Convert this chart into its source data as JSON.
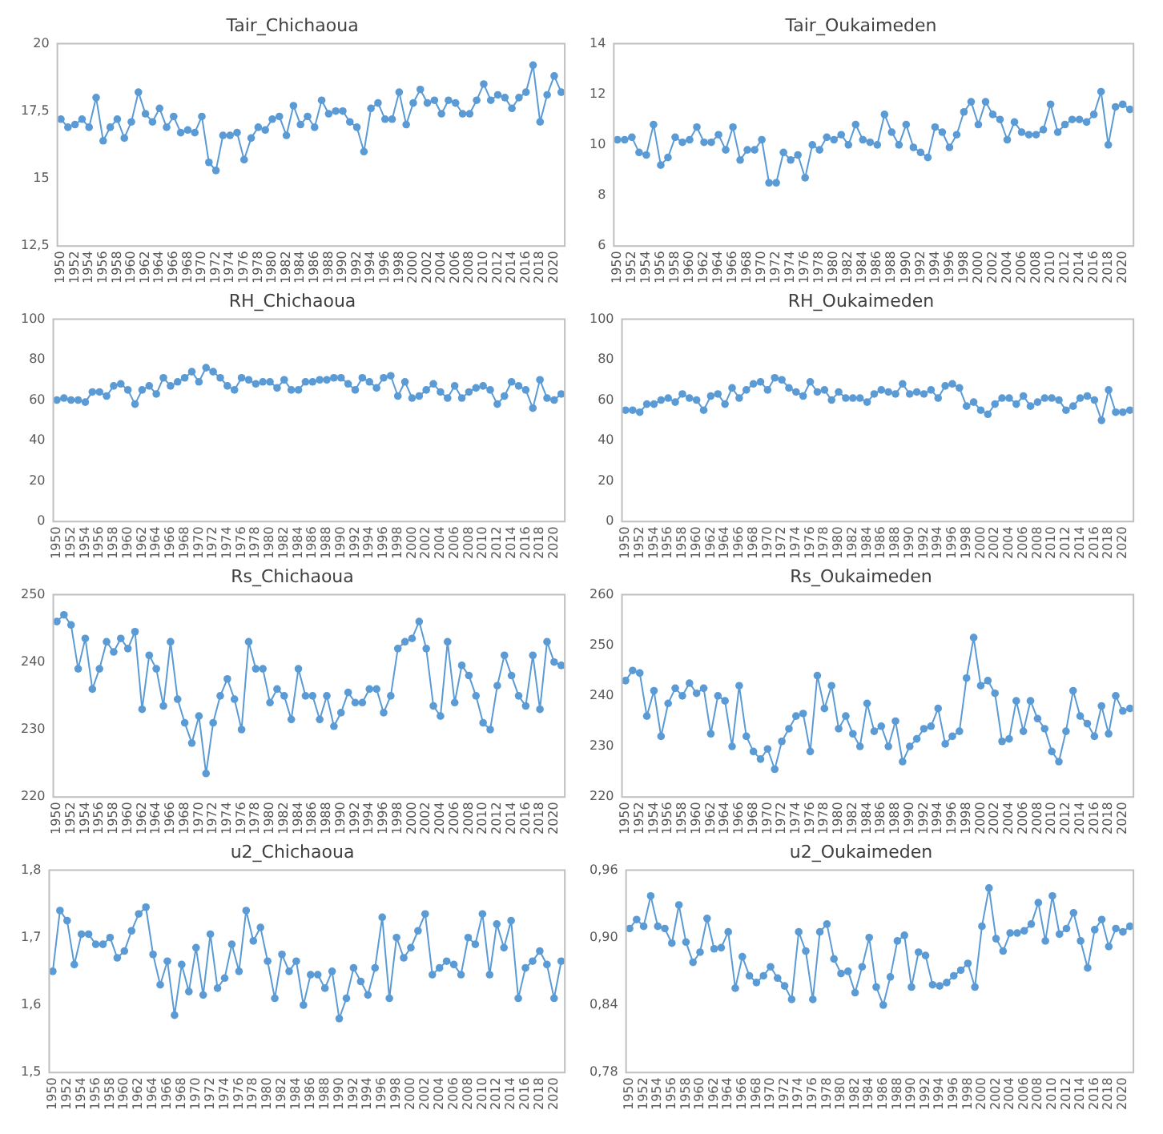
{
  "chart_data": [
    {
      "type": "line",
      "title": "Tair_Chichaoua",
      "categories": [
        "1950",
        null,
        "1952",
        null,
        "1954",
        null,
        "1956",
        null,
        "1958",
        null,
        "1960",
        null,
        "1962",
        null,
        "1964",
        null,
        "1966",
        null,
        "1968",
        null,
        "1970",
        null,
        "1972",
        null,
        "1974",
        null,
        "1976",
        null,
        "1978",
        null,
        "1980",
        null,
        "1982",
        null,
        "1984",
        null,
        "1986",
        null,
        "1988",
        null,
        "1990",
        null,
        "1992",
        null,
        "1994",
        null,
        "1996",
        null,
        "1998",
        null,
        "2000",
        null,
        "2002",
        null,
        "2004",
        null,
        "2006",
        null,
        "2008",
        null,
        "2010",
        null,
        "2012",
        null,
        "2014",
        null,
        "2016",
        null,
        "2018",
        null,
        "2020",
        null
      ],
      "color": "#5b9bd5",
      "values": [
        17.2,
        16.9,
        17.0,
        17.2,
        16.9,
        18.0,
        16.4,
        16.9,
        17.2,
        16.5,
        17.1,
        18.2,
        17.4,
        17.1,
        17.6,
        16.9,
        17.3,
        16.7,
        16.8,
        16.7,
        17.3,
        15.6,
        15.3,
        16.6,
        16.6,
        16.7,
        15.7,
        16.5,
        16.9,
        16.8,
        17.2,
        17.3,
        16.6,
        17.7,
        17.0,
        17.3,
        16.9,
        17.9,
        17.4,
        17.5,
        17.5,
        17.1,
        16.9,
        16.0,
        17.6,
        17.8,
        17.2,
        17.2,
        18.2,
        17.0,
        17.8,
        18.3,
        17.8,
        17.9,
        17.4,
        17.9,
        17.8,
        17.4,
        17.4,
        17.9,
        18.5,
        17.9,
        18.1,
        18.0,
        17.6,
        18.0,
        18.2,
        19.2,
        17.1,
        18.1,
        18.8,
        18.2
      ],
      "ylim": [
        12.5,
        20
      ],
      "yticks": [
        {
          "value": 12.5,
          "label": "12,5"
        },
        15,
        {
          "value": 17.5,
          "label": "17,5"
        },
        20
      ],
      "grid": false,
      "legend": false,
      "marker": "circle"
    },
    {
      "type": "line",
      "title": "Tair_Oukaimeden",
      "categories": [
        "1950",
        null,
        "1952",
        null,
        "1954",
        null,
        "1956",
        null,
        "1958",
        null,
        "1960",
        null,
        "1962",
        null,
        "1964",
        null,
        "1966",
        null,
        "1968",
        null,
        "1970",
        null,
        "1972",
        null,
        "1974",
        null,
        "1976",
        null,
        "1978",
        null,
        "1980",
        null,
        "1982",
        null,
        "1984",
        null,
        "1986",
        null,
        "1988",
        null,
        "1990",
        null,
        "1992",
        null,
        "1994",
        null,
        "1996",
        null,
        "1998",
        null,
        "2000",
        null,
        "2002",
        null,
        "2004",
        null,
        "2006",
        null,
        "2008",
        null,
        "2010",
        null,
        "2012",
        null,
        "2014",
        null,
        "2016",
        null,
        "2018",
        null,
        "2020",
        null
      ],
      "color": "#5b9bd5",
      "values": [
        10.2,
        10.2,
        10.3,
        9.7,
        9.6,
        10.8,
        9.2,
        9.5,
        10.3,
        10.1,
        10.2,
        10.7,
        10.1,
        10.1,
        10.4,
        9.8,
        10.7,
        9.4,
        9.8,
        9.8,
        10.2,
        8.5,
        8.5,
        9.7,
        9.4,
        9.6,
        8.7,
        10.0,
        9.8,
        10.3,
        10.2,
        10.4,
        10.0,
        10.8,
        10.2,
        10.1,
        10.0,
        11.2,
        10.5,
        10.0,
        10.8,
        9.9,
        9.7,
        9.5,
        10.7,
        10.5,
        9.9,
        10.4,
        11.3,
        11.7,
        10.8,
        11.7,
        11.2,
        11.0,
        10.2,
        10.9,
        10.5,
        10.4,
        10.4,
        10.6,
        11.6,
        10.5,
        10.8,
        11.0,
        11.0,
        10.9,
        11.2,
        12.1,
        10.0,
        11.5,
        11.6,
        11.4
      ],
      "ylim": [
        6,
        14
      ],
      "yticks": [
        6,
        8,
        10,
        12,
        14
      ],
      "grid": false,
      "legend": false,
      "marker": "circle"
    },
    {
      "type": "line",
      "title": "RH_Chichaoua",
      "categories": [
        "1950",
        null,
        "1952",
        null,
        "1954",
        null,
        "1956",
        null,
        "1958",
        null,
        "1960",
        null,
        "1962",
        null,
        "1964",
        null,
        "1966",
        null,
        "1968",
        null,
        "1970",
        null,
        "1972",
        null,
        "1974",
        null,
        "1976",
        null,
        "1978",
        null,
        "1980",
        null,
        "1982",
        null,
        "1984",
        null,
        "1986",
        null,
        "1988",
        null,
        "1990",
        null,
        "1992",
        null,
        "1994",
        null,
        "1996",
        null,
        "1998",
        null,
        "2000",
        null,
        "2002",
        null,
        "2004",
        null,
        "2006",
        null,
        "2008",
        null,
        "2010",
        null,
        "2012",
        null,
        "2014",
        null,
        "2016",
        null,
        "2018",
        null,
        "2020",
        null
      ],
      "color": "#5b9bd5",
      "values": [
        60,
        61,
        60,
        60,
        59,
        64,
        64,
        62,
        67,
        68,
        65,
        58,
        65,
        67,
        63,
        71,
        67,
        69,
        71,
        74,
        69,
        76,
        74,
        71,
        67,
        65,
        71,
        70,
        68,
        69,
        69,
        66,
        70,
        65,
        65,
        69,
        69,
        70,
        70,
        71,
        71,
        68,
        65,
        71,
        69,
        66,
        71,
        72,
        62,
        69,
        61,
        62,
        65,
        68,
        64,
        61,
        67,
        61,
        64,
        66,
        67,
        65,
        58,
        62,
        69,
        67,
        65,
        56,
        70,
        61,
        60,
        63
      ],
      "ylim": [
        0,
        100
      ],
      "yticks": [
        0,
        20,
        40,
        60,
        80,
        100
      ],
      "grid": false,
      "legend": false,
      "marker": "circle"
    },
    {
      "type": "line",
      "title": "RH_Oukaimeden",
      "categories": [
        "1950",
        null,
        "1952",
        null,
        "1954",
        null,
        "1956",
        null,
        "1958",
        null,
        "1960",
        null,
        "1962",
        null,
        "1964",
        null,
        "1966",
        null,
        "1968",
        null,
        "1970",
        null,
        "1972",
        null,
        "1974",
        null,
        "1976",
        null,
        "1978",
        null,
        "1980",
        null,
        "1982",
        null,
        "1984",
        null,
        "1986",
        null,
        "1988",
        null,
        "1990",
        null,
        "1992",
        null,
        "1994",
        null,
        "1996",
        null,
        "1998",
        null,
        "2000",
        null,
        "2002",
        null,
        "2004",
        null,
        "2006",
        null,
        "2008",
        null,
        "2010",
        null,
        "2012",
        null,
        "2014",
        null,
        "2016",
        null,
        "2018",
        null,
        "2020",
        null
      ],
      "color": "#5b9bd5",
      "values": [
        55,
        55,
        54,
        58,
        58,
        60,
        61,
        59,
        63,
        61,
        60,
        55,
        62,
        63,
        58,
        66,
        61,
        65,
        68,
        69,
        65,
        71,
        70,
        66,
        64,
        62,
        69,
        64,
        65,
        60,
        64,
        61,
        61,
        61,
        59,
        63,
        65,
        64,
        63,
        68,
        63,
        64,
        63,
        65,
        61,
        67,
        68,
        66,
        57,
        59,
        55,
        53,
        58,
        61,
        61,
        58,
        62,
        57,
        59,
        61,
        61,
        60,
        55,
        57,
        61,
        62,
        60,
        50,
        65,
        54,
        54,
        55
      ],
      "ylim": [
        0,
        100
      ],
      "yticks": [
        0,
        20,
        40,
        60,
        80,
        100
      ],
      "grid": false,
      "legend": false,
      "marker": "circle"
    },
    {
      "type": "line",
      "title": "Rs_Chichaoua",
      "categories": [
        "1950",
        null,
        "1952",
        null,
        "1954",
        null,
        "1956",
        null,
        "1958",
        null,
        "1960",
        null,
        "1962",
        null,
        "1964",
        null,
        "1966",
        null,
        "1968",
        null,
        "1970",
        null,
        "1972",
        null,
        "1974",
        null,
        "1976",
        null,
        "1978",
        null,
        "1980",
        null,
        "1982",
        null,
        "1984",
        null,
        "1986",
        null,
        "1988",
        null,
        "1990",
        null,
        "1992",
        null,
        "1994",
        null,
        "1996",
        null,
        "1998",
        null,
        "2000",
        null,
        "2002",
        null,
        "2004",
        null,
        "2006",
        null,
        "2008",
        null,
        "2010",
        null,
        "2012",
        null,
        "2014",
        null,
        "2016",
        null,
        "2018",
        null,
        "2020",
        null
      ],
      "color": "#5b9bd5",
      "values": [
        246,
        247,
        245.5,
        239,
        243.5,
        236,
        239,
        243,
        241.5,
        243.5,
        242,
        244.5,
        233,
        241,
        239,
        233.5,
        243,
        234.5,
        231,
        228,
        232,
        223.5,
        231,
        235,
        237.5,
        234.5,
        230,
        243,
        239,
        239,
        234,
        236,
        235,
        231.5,
        239,
        235,
        235,
        231.5,
        235,
        230.5,
        232.5,
        235.5,
        234,
        234,
        236,
        236,
        232.5,
        235,
        242,
        243,
        243.5,
        246,
        242,
        233.5,
        232,
        243,
        234,
        239.5,
        238,
        235,
        231,
        230,
        236.5,
        241,
        238,
        235,
        233.5,
        241,
        233,
        243,
        240,
        239.5
      ],
      "ylim": [
        220,
        250
      ],
      "yticks": [
        220,
        230,
        240,
        250
      ],
      "grid": false,
      "legend": false,
      "marker": "circle"
    },
    {
      "type": "line",
      "title": "Rs_Oukaimeden",
      "categories": [
        "1950",
        null,
        "1952",
        null,
        "1954",
        null,
        "1956",
        null,
        "1958",
        null,
        "1960",
        null,
        "1962",
        null,
        "1964",
        null,
        "1966",
        null,
        "1968",
        null,
        "1970",
        null,
        "1972",
        null,
        "1974",
        null,
        "1976",
        null,
        "1978",
        null,
        "1980",
        null,
        "1982",
        null,
        "1984",
        null,
        "1986",
        null,
        "1988",
        null,
        "1990",
        null,
        "1992",
        null,
        "1994",
        null,
        "1996",
        null,
        "1998",
        null,
        "2000",
        null,
        "2002",
        null,
        "2004",
        null,
        "2006",
        null,
        "2008",
        null,
        "2010",
        null,
        "2012",
        null,
        "2014",
        null,
        "2016",
        null,
        "2018",
        null,
        "2020",
        null
      ],
      "color": "#5b9bd5",
      "values": [
        243,
        245,
        244.5,
        236,
        241,
        232,
        238.5,
        241.5,
        240,
        242.5,
        240.5,
        241.5,
        232.5,
        240,
        239,
        230,
        242,
        232,
        229,
        227.5,
        229.5,
        225.5,
        231,
        233.5,
        236,
        236.5,
        229,
        244,
        237.5,
        242,
        233.5,
        236,
        232.5,
        230,
        238.5,
        233,
        234,
        230,
        235,
        227,
        230,
        231.5,
        233.5,
        234,
        237.5,
        230.5,
        232,
        233,
        243.5,
        251.5,
        242,
        243,
        240.5,
        231,
        231.5,
        239,
        233,
        239,
        235.5,
        233.5,
        229,
        227,
        233,
        241,
        236,
        234.5,
        232,
        238,
        232.5,
        240,
        237,
        237.5
      ],
      "ylim": [
        220,
        260
      ],
      "yticks": [
        220,
        230,
        240,
        250,
        260
      ],
      "grid": false,
      "legend": false,
      "marker": "circle"
    },
    {
      "type": "line",
      "title": "u2_Chichaoua",
      "categories": [
        "1950",
        null,
        "1952",
        null,
        "1954",
        null,
        "1956",
        null,
        "1958",
        null,
        "1960",
        null,
        "1962",
        null,
        "1964",
        null,
        "1966",
        null,
        "1968",
        null,
        "1970",
        null,
        "1972",
        null,
        "1974",
        null,
        "1976",
        null,
        "1978",
        null,
        "1980",
        null,
        "1982",
        null,
        "1984",
        null,
        "1986",
        null,
        "1988",
        null,
        "1990",
        null,
        "1992",
        null,
        "1994",
        null,
        "1996",
        null,
        "1998",
        null,
        "2000",
        null,
        "2002",
        null,
        "2004",
        null,
        "2006",
        null,
        "2008",
        null,
        "2010",
        null,
        "2012",
        null,
        "2014",
        null,
        "2016",
        null,
        "2018",
        null,
        "2020",
        null
      ],
      "color": "#5b9bd5",
      "values": [
        1.65,
        1.74,
        1.725,
        1.66,
        1.705,
        1.705,
        1.69,
        1.69,
        1.7,
        1.67,
        1.68,
        1.71,
        1.735,
        1.745,
        1.675,
        1.63,
        1.665,
        1.585,
        1.66,
        1.62,
        1.685,
        1.615,
        1.705,
        1.625,
        1.64,
        1.69,
        1.65,
        1.74,
        1.695,
        1.715,
        1.665,
        1.61,
        1.675,
        1.65,
        1.665,
        1.6,
        1.645,
        1.645,
        1.625,
        1.65,
        1.58,
        1.61,
        1.655,
        1.635,
        1.615,
        1.655,
        1.73,
        1.61,
        1.7,
        1.67,
        1.685,
        1.71,
        1.735,
        1.645,
        1.655,
        1.665,
        1.66,
        1.645,
        1.7,
        1.69,
        1.735,
        1.645,
        1.72,
        1.685,
        1.725,
        1.61,
        1.655,
        1.665,
        1.68,
        1.66,
        1.61,
        1.665
      ],
      "ylim": [
        1.5,
        1.8
      ],
      "yticks": [
        {
          "value": 1.5,
          "label": "1,5"
        },
        {
          "value": 1.6,
          "label": "1,6"
        },
        {
          "value": 1.7,
          "label": "1,7"
        },
        {
          "value": 1.8,
          "label": "1,8"
        }
      ],
      "grid": false,
      "legend": false,
      "marker": "circle"
    },
    {
      "type": "line",
      "title": "u2_Oukaimeden",
      "categories": [
        "1950",
        null,
        "1952",
        null,
        "1954",
        null,
        "1956",
        null,
        "1958",
        null,
        "1960",
        null,
        "1962",
        null,
        "1964",
        null,
        "1966",
        null,
        "1968",
        null,
        "1970",
        null,
        "1972",
        null,
        "1974",
        null,
        "1976",
        null,
        "1978",
        null,
        "1980",
        null,
        "1982",
        null,
        "1984",
        null,
        "1986",
        null,
        "1988",
        null,
        "1990",
        null,
        "1992",
        null,
        "1994",
        null,
        "1996",
        null,
        "1998",
        null,
        "2000",
        null,
        "2002",
        null,
        "2004",
        null,
        "2006",
        null,
        "2008",
        null,
        "2010",
        null,
        "2012",
        null,
        "2014",
        null,
        "2016",
        null,
        "2018",
        null,
        "2020",
        null
      ],
      "color": "#5b9bd5",
      "values": [
        0.908,
        0.916,
        0.91,
        0.937,
        0.91,
        0.908,
        0.895,
        0.929,
        0.896,
        0.878,
        0.887,
        0.917,
        0.89,
        0.891,
        0.905,
        0.855,
        0.883,
        0.866,
        0.86,
        0.866,
        0.874,
        0.864,
        0.857,
        0.845,
        0.905,
        0.888,
        0.845,
        0.905,
        0.912,
        0.881,
        0.868,
        0.87,
        0.851,
        0.874,
        0.9,
        0.856,
        0.84,
        0.865,
        0.897,
        0.902,
        0.856,
        0.887,
        0.884,
        0.858,
        0.857,
        0.86,
        0.866,
        0.871,
        0.877,
        0.856,
        0.91,
        0.944,
        0.899,
        0.888,
        0.904,
        0.904,
        0.906,
        0.912,
        0.931,
        0.897,
        0.937,
        0.903,
        0.908,
        0.922,
        0.897,
        0.873,
        0.907,
        0.916,
        0.892,
        0.908,
        0.905,
        0.91
      ],
      "ylim": [
        0.78,
        0.96
      ],
      "yticks": [
        {
          "value": 0.78,
          "label": "0,78"
        },
        {
          "value": 0.84,
          "label": "0,84"
        },
        {
          "value": 0.9,
          "label": "0,90"
        },
        {
          "value": 0.96,
          "label": "0,96"
        }
      ],
      "grid": false,
      "legend": false,
      "marker": "circle"
    }
  ]
}
